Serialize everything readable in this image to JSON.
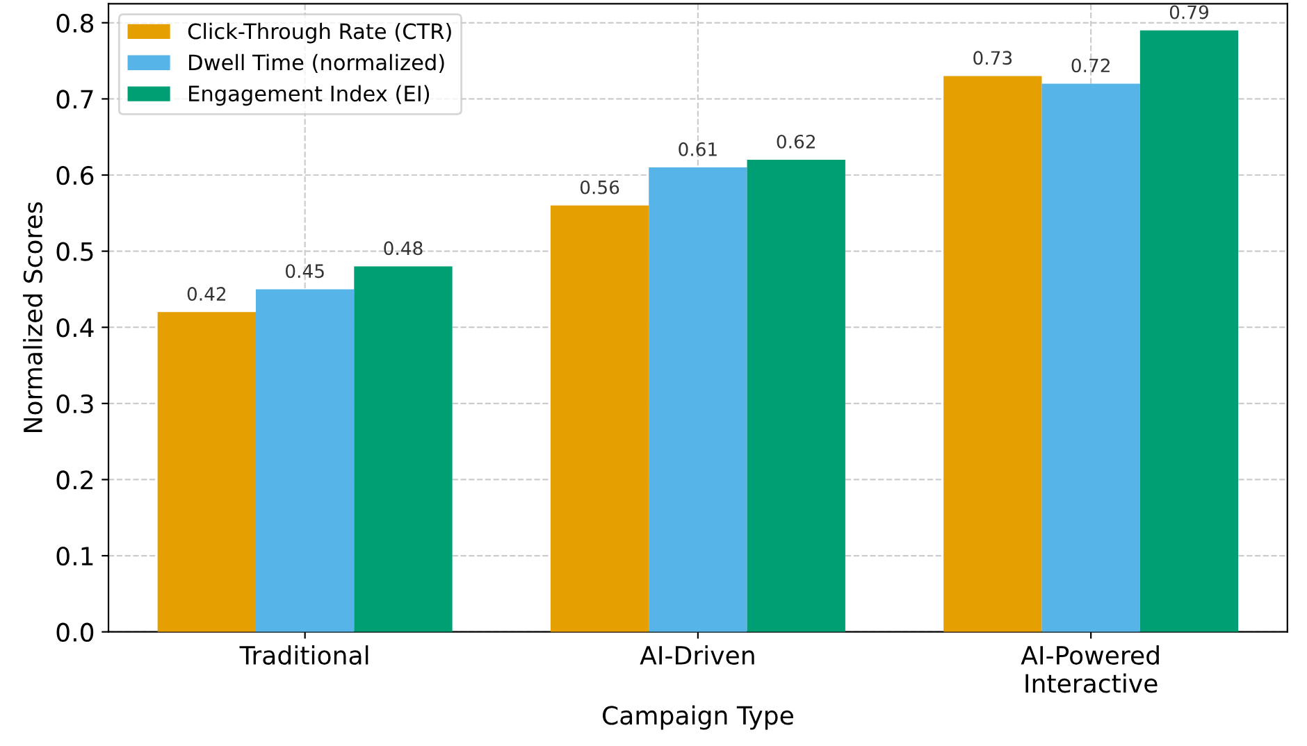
{
  "chart_data": {
    "type": "bar",
    "xlabel": "Campaign Type",
    "ylabel": "Normalized Scores",
    "categories": [
      "Traditional",
      "AI-Driven",
      "AI-Powered\nInteractive"
    ],
    "series": [
      {
        "name": "Click-Through Rate (CTR)",
        "color": "#e69f00",
        "values": [
          0.42,
          0.56,
          0.73
        ]
      },
      {
        "name": "Dwell Time (normalized)",
        "color": "#56b4e9",
        "values": [
          0.45,
          0.61,
          0.72
        ]
      },
      {
        "name": "Engagement Index (EI)",
        "color": "#009e73",
        "values": [
          0.48,
          0.62,
          0.79
        ]
      }
    ],
    "ylim": [
      0,
      0.825
    ],
    "yticks": [
      {
        "value": 0,
        "label": "0.0"
      },
      0.1,
      0.2,
      0.3,
      0.4,
      0.5,
      0.6,
      0.7,
      0.8
    ],
    "grid": true,
    "legend": "top left",
    "data_labels": true
  }
}
